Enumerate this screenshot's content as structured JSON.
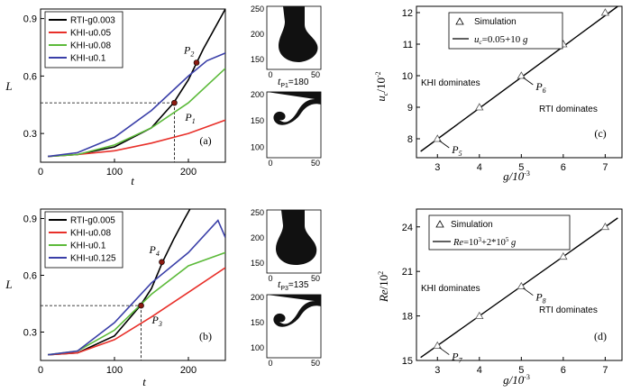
{
  "chart_data": [
    {
      "id": "a",
      "type": "line",
      "panel_label": "(a)",
      "xlabel": "t",
      "ylabel": "L",
      "xlim": [
        0,
        250
      ],
      "ylim": [
        0.15,
        0.95
      ],
      "xticks": [
        0,
        100,
        200
      ],
      "yticks": [
        0.3,
        0.6,
        0.9
      ],
      "series": [
        {
          "name": "RTI-g0.003",
          "color": "#000000",
          "x": [
            10,
            50,
            100,
            150,
            180,
            200,
            220,
            240,
            250
          ],
          "y": [
            0.18,
            0.19,
            0.23,
            0.33,
            0.46,
            0.58,
            0.74,
            0.88,
            0.95
          ]
        },
        {
          "name": "KHI-u0.05",
          "color": "#e8302a",
          "x": [
            10,
            50,
            100,
            150,
            200,
            250
          ],
          "y": [
            0.18,
            0.19,
            0.21,
            0.25,
            0.3,
            0.37
          ]
        },
        {
          "name": "KHI-u0.08",
          "color": "#5cba3a",
          "x": [
            10,
            50,
            100,
            150,
            200,
            250
          ],
          "y": [
            0.18,
            0.19,
            0.24,
            0.33,
            0.46,
            0.64
          ]
        },
        {
          "name": "KHI-u0.1",
          "color": "#3a3fa8",
          "x": [
            10,
            50,
            100,
            150,
            200,
            225,
            250
          ],
          "y": [
            0.18,
            0.2,
            0.28,
            0.42,
            0.6,
            0.68,
            0.72
          ]
        }
      ],
      "points": [
        {
          "label": "P",
          "sub": "1",
          "x": 181,
          "y": 0.46
        },
        {
          "label": "P",
          "sub": "2",
          "x": 211,
          "y": 0.67
        }
      ],
      "guide": {
        "x": 181,
        "y": 0.46
      },
      "inset_label": "t",
      "inset_sub": "P1",
      "inset_value": "=180",
      "inset_xticks": [
        0,
        50
      ],
      "inset_yticks": [
        100,
        150,
        200,
        250
      ]
    },
    {
      "id": "b",
      "type": "line",
      "panel_label": "(b)",
      "xlabel": "t",
      "ylabel": "L",
      "xlim": [
        0,
        250
      ],
      "ylim": [
        0.15,
        0.95
      ],
      "xticks": [
        0,
        100,
        200
      ],
      "yticks": [
        0.3,
        0.6,
        0.9
      ],
      "series": [
        {
          "name": "RTI-g0.005",
          "color": "#000000",
          "x": [
            10,
            50,
            100,
            135,
            150,
            165,
            180,
            195,
            205
          ],
          "y": [
            0.18,
            0.19,
            0.28,
            0.44,
            0.53,
            0.67,
            0.79,
            0.9,
            0.97
          ]
        },
        {
          "name": "KHI-u0.08",
          "color": "#e8302a",
          "x": [
            10,
            50,
            100,
            150,
            200,
            250
          ],
          "y": [
            0.18,
            0.19,
            0.26,
            0.38,
            0.51,
            0.64
          ]
        },
        {
          "name": "KHI-u0.1",
          "color": "#5cba3a",
          "x": [
            10,
            50,
            100,
            150,
            200,
            250
          ],
          "y": [
            0.18,
            0.2,
            0.31,
            0.5,
            0.65,
            0.72
          ]
        },
        {
          "name": "KHI-u0.125",
          "color": "#3a3fa8",
          "x": [
            10,
            50,
            100,
            150,
            200,
            240,
            250
          ],
          "y": [
            0.18,
            0.2,
            0.35,
            0.56,
            0.72,
            0.89,
            0.8
          ]
        }
      ],
      "points": [
        {
          "label": "P",
          "sub": "3",
          "x": 136,
          "y": 0.44
        },
        {
          "label": "P",
          "sub": "4",
          "x": 164,
          "y": 0.67
        }
      ],
      "guide": {
        "x": 136,
        "y": 0.44
      },
      "inset_label": "t",
      "inset_sub": "P3",
      "inset_value": "=135",
      "inset_xticks": [
        0,
        50
      ],
      "inset_yticks": [
        100,
        150,
        200,
        250
      ]
    },
    {
      "id": "c",
      "type": "scatter",
      "panel_label": "(c)",
      "xlabel": "g/10",
      "xlabel_sup": "-3",
      "ylabel": "u",
      "ylabel_sub": "c",
      "ylabel_rest": "/10",
      "ylabel_sup": "-2",
      "xlim": [
        2.5,
        7.4
      ],
      "ylim": [
        7.4,
        12.2
      ],
      "xticks": [
        3,
        4,
        5,
        6,
        7
      ],
      "yticks": [
        8,
        9,
        10,
        11,
        12
      ],
      "scatter_name": "Simulation",
      "scatter": {
        "x": [
          3,
          4,
          5,
          6,
          7
        ],
        "y": [
          8,
          9,
          10,
          11,
          12
        ]
      },
      "fit_name": "u_c=0.05+10 g",
      "fit": {
        "x": [
          2.6,
          7.3
        ],
        "y": [
          7.6,
          12.3
        ]
      },
      "region_upper": "KHI dominates",
      "region_lower": "RTI dominates",
      "points": [
        {
          "label": "P",
          "sub": "5",
          "x": 3,
          "y": 8
        },
        {
          "label": "P",
          "sub": "6",
          "x": 5,
          "y": 10
        }
      ]
    },
    {
      "id": "d",
      "type": "scatter",
      "panel_label": "(d)",
      "xlabel": "g/10",
      "xlabel_sup": "-3",
      "ylabel": "Re",
      "ylabel_rest": "/10",
      "ylabel_sup": "2",
      "xlim": [
        2.5,
        7.4
      ],
      "ylim": [
        15,
        25.2
      ],
      "xticks": [
        3,
        4,
        5,
        6,
        7
      ],
      "yticks": [
        15,
        18,
        21,
        24
      ],
      "scatter_name": "Simulation",
      "scatter": {
        "x": [
          3,
          4,
          5,
          6,
          7
        ],
        "y": [
          16,
          18,
          20,
          22,
          24
        ]
      },
      "fit_name": "Re=10^3+2*10^5 g",
      "fit": {
        "x": [
          2.6,
          7.3
        ],
        "y": [
          15.2,
          24.6
        ]
      },
      "region_upper": "KHI dominates",
      "region_lower": "RTI dominates",
      "points": [
        {
          "label": "P",
          "sub": "7",
          "x": 3,
          "y": 16
        },
        {
          "label": "P",
          "sub": "8",
          "x": 5,
          "y": 20
        }
      ]
    }
  ]
}
